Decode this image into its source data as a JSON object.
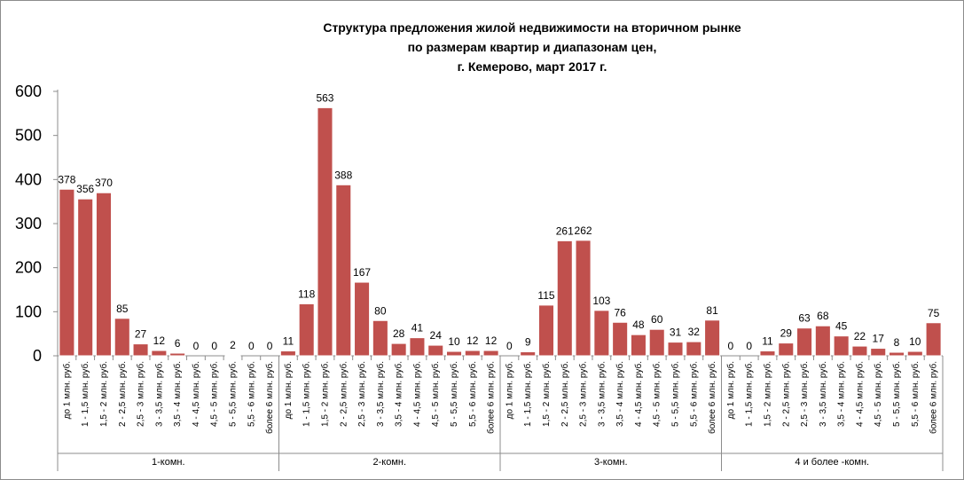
{
  "chart_data": {
    "type": "bar",
    "title": [
      "Структура предложения жилой недвижимости на вторичном рынке",
      "по размерам квартир и диапазонам  цен,",
      "г. Кемерово, март 2017  г."
    ],
    "ylim": [
      0,
      600
    ],
    "yticks": [
      0,
      100,
      200,
      300,
      400,
      500,
      600
    ],
    "grid": false,
    "bar_color": "#c0504d",
    "groups": [
      {
        "name": "1-комн.",
        "categories": [
          "до 1 млн. руб.",
          "1 - 1,5 млн. руб.",
          "1,5 - 2 млн. руб.",
          "2 - 2,5 млн. руб.",
          "2,5 - 3 млн. руб.",
          "3 - 3,5 млн. руб.",
          "3,5 - 4 млн. руб.",
          "4 - 4,5 млн. руб.",
          "4,5 - 5 млн. руб.",
          "5 - 5,5 млн. руб.",
          "5,5 - 6 млн. руб.",
          "более 6 млн. руб."
        ],
        "values": [
          378,
          356,
          370,
          85,
          27,
          12,
          6,
          0,
          0,
          2,
          0,
          0
        ]
      },
      {
        "name": "2-комн.",
        "categories": [
          "до 1 млн. руб.",
          "1 - 1,5 млн. руб.",
          "1,5 - 2 млн. руб.",
          "2 - 2,5 млн. руб.",
          "2,5 - 3 млн. руб.",
          "3 - 3,5 млн. руб.",
          "3,5 - 4 млн. руб.",
          "4 - 4,5 млн. руб.",
          "4,5 - 5 млн. руб.",
          "5 - 5,5 млн. руб.",
          "5,5 - 6 млн. руб.",
          "более 6 млн. руб."
        ],
        "values": [
          11,
          118,
          563,
          388,
          167,
          80,
          28,
          41,
          24,
          10,
          12,
          12
        ]
      },
      {
        "name": "3-комн.",
        "categories": [
          "до 1 млн. руб.",
          "1 - 1,5 млн. руб.",
          "1,5 - 2 млн. руб.",
          "2 - 2,5 млн. руб.",
          "2,5 - 3 млн. руб.",
          "3 - 3,5 млн. руб.",
          "3,5 - 4 млн. руб.",
          "4 - 4,5 млн. руб.",
          "4,5 - 5 млн. руб.",
          "5 - 5,5 млн. руб.",
          "5,5 - 6 млн. руб.",
          "более 6 млн. руб."
        ],
        "values": [
          0,
          9,
          115,
          261,
          262,
          103,
          76,
          48,
          60,
          31,
          32,
          81
        ]
      },
      {
        "name": "4 и более -комн.",
        "categories": [
          "до 1 млн. руб.",
          "1 - 1,5 млн. руб.",
          "1,5 - 2 млн. руб.",
          "2 - 2,5 млн. руб.",
          "2,5 - 3 млн. руб.",
          "3 - 3,5 млн. руб.",
          "3,5 - 4 млн. руб.",
          "4 - 4,5 млн. руб.",
          "4,5 - 5 млн. руб.",
          "5 - 5,5 млн. руб.",
          "5,5 - 6 млн. руб.",
          "более 6 млн. руб."
        ],
        "values": [
          0,
          0,
          11,
          29,
          63,
          68,
          45,
          22,
          17,
          8,
          10,
          75
        ]
      }
    ]
  }
}
